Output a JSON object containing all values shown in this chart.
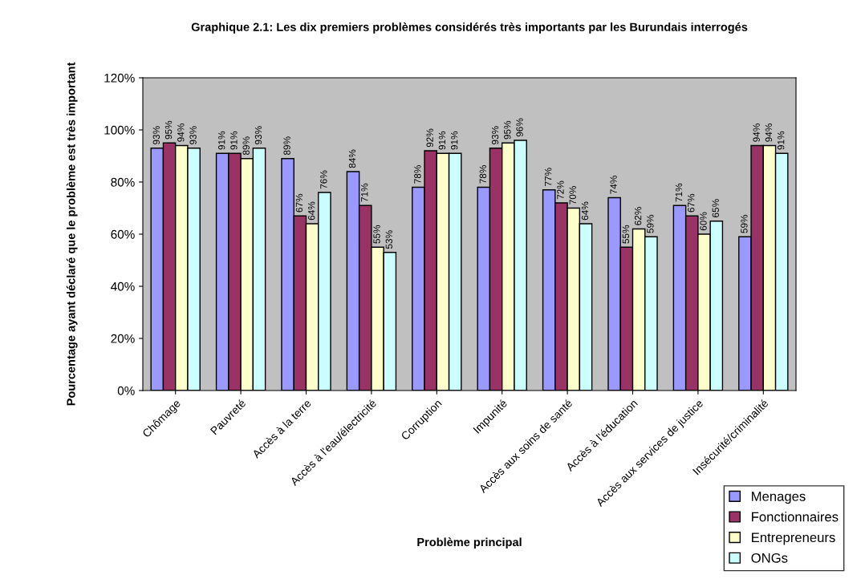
{
  "chart_data": {
    "type": "bar",
    "title": "Graphique 2.1: Les dix premiers problèmes considérés très importants par les Burundais interrogés",
    "xlabel": "Problème principal",
    "ylabel": "Pourcentage ayant déclaré que le problème est très important",
    "categories": [
      "Chômage",
      "Pauvreté",
      "Accès à la terre",
      "Accès à l'eau/électricité",
      "Corruption",
      "Impunité",
      "Accès aux soins de santé",
      "Accès à l'éducation",
      "Accès aux services de justice",
      "Insécurité/criminalité"
    ],
    "series": [
      {
        "name": "Menages",
        "color": "#9999ff",
        "values": [
          93,
          91,
          89,
          84,
          78,
          78,
          77,
          74,
          71,
          59
        ],
        "value_labels": [
          "93%",
          "91%",
          "89%",
          "84%",
          "78%",
          "78%",
          "77%",
          "74%",
          "71%",
          "59%"
        ]
      },
      {
        "name": "Fonctionnaires",
        "color": "#993366",
        "values": [
          95,
          91,
          67,
          71,
          92,
          93,
          72,
          55,
          67,
          94
        ],
        "value_labels": [
          "95%",
          "91%",
          "67%",
          "71%",
          "92%",
          "93%",
          "72%",
          "55%",
          "67%",
          "94%"
        ]
      },
      {
        "name": "Entrepreneurs",
        "color": "#ffffcc",
        "values": [
          94,
          89,
          64,
          55,
          91,
          95,
          70,
          62,
          60,
          94
        ],
        "value_labels": [
          "94%",
          "89%",
          "64%",
          "55%",
          "91%",
          "95%",
          "70%",
          "62%",
          "60%",
          "94%"
        ]
      },
      {
        "name": "ONGs",
        "color": "#ccffff",
        "values": [
          93,
          93,
          76,
          53,
          91,
          96,
          64,
          59,
          65,
          91
        ],
        "value_labels": [
          "93%",
          "93%",
          "76%",
          "53%",
          "91%",
          "96%",
          "64%",
          "59%",
          "65%",
          "91%"
        ]
      }
    ],
    "ylim": [
      0,
      120
    ],
    "yticks": [
      {
        "value": 0,
        "label": "0%"
      },
      {
        "value": 20,
        "label": "20%"
      },
      {
        "value": 40,
        "label": "40%"
      },
      {
        "value": 60,
        "label": "60%"
      },
      {
        "value": 80,
        "label": "80%"
      },
      {
        "value": 100,
        "label": "100%"
      },
      {
        "value": 120,
        "label": "120%"
      }
    ],
    "grid": false,
    "legend": "bottom right"
  }
}
